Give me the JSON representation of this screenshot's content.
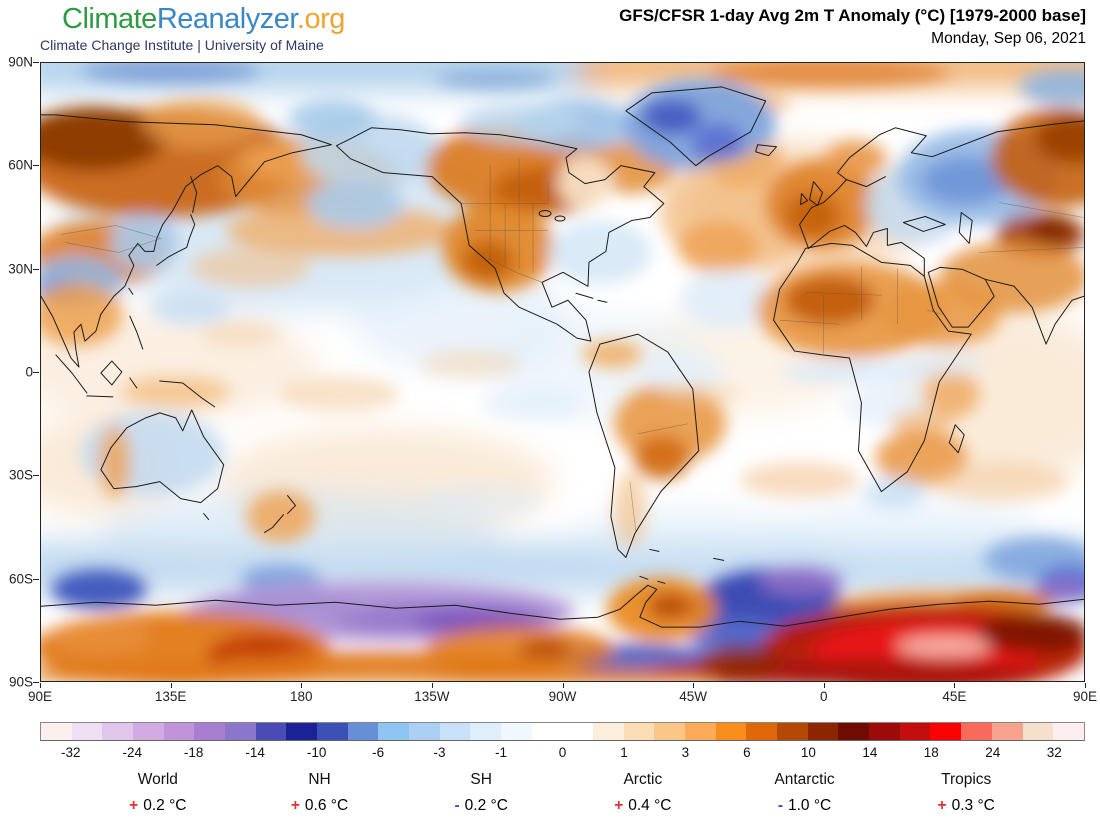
{
  "header": {
    "logo_climate": "Climate",
    "logo_reanalyzer": "Reanalyzer",
    "logo_org": ".org",
    "tagline": "Climate Change Institute | University of Maine",
    "title": "GFS/CFSR 1-day Avg 2m T Anomaly (°C) [1979-2000 base]",
    "date": "Monday, Sep 06, 2021"
  },
  "brand_colors": {
    "climate": "#2e9b44",
    "reanalyzer": "#3a87c8",
    "org": "#f0a32f",
    "tagline": "#2f3566"
  },
  "axes": {
    "lat": [
      "90N",
      "60N",
      "30N",
      "0",
      "30S",
      "60S",
      "90S"
    ],
    "lon": [
      "90E",
      "135E",
      "180",
      "135W",
      "90W",
      "45W",
      "0",
      "45E",
      "90E"
    ]
  },
  "colorbar": {
    "tick_labels": [
      "-32",
      "-24",
      "-18",
      "-14",
      "-10",
      "-6",
      "-3",
      "-1",
      "0",
      "1",
      "3",
      "6",
      "10",
      "14",
      "18",
      "24",
      "32"
    ],
    "cell_colors": [
      "#fbf0ee",
      "#eedff2",
      "#e0c6eb",
      "#d2abe2",
      "#c194d9",
      "#a87fd0",
      "#8a76cb",
      "#4b4bb5",
      "#1a2296",
      "#3c51b5",
      "#6590d6",
      "#8ec4f0",
      "#abd0f3",
      "#c7e2f8",
      "#dfeefb",
      "#f0f7fd",
      "#ffffff",
      "#ffffff",
      "#fbeedd",
      "#fbdcb5",
      "#fcc687",
      "#fdab58",
      "#f98d1b",
      "#df6909",
      "#b44905",
      "#8c2600",
      "#6e0c02",
      "#9c0a0a",
      "#c40d0d",
      "#fb0303",
      "#f96a5a",
      "#f9a28e",
      "#f5e0cd",
      "#fdeef0"
    ]
  },
  "stats": {
    "plus_color": "#e53030",
    "minus_color": "#3a46d8",
    "unit": "°C",
    "regions": [
      {
        "label": "World",
        "sign": "+",
        "value": "0.2"
      },
      {
        "label": "NH",
        "sign": "+",
        "value": "0.6"
      },
      {
        "label": "SH",
        "sign": "-",
        "value": "0.2"
      },
      {
        "label": "Arctic",
        "sign": "+",
        "value": "0.4"
      },
      {
        "label": "Antarctic",
        "sign": "-",
        "value": "1.0"
      },
      {
        "label": "Tropics",
        "sign": "+",
        "value": "0.3"
      }
    ]
  }
}
